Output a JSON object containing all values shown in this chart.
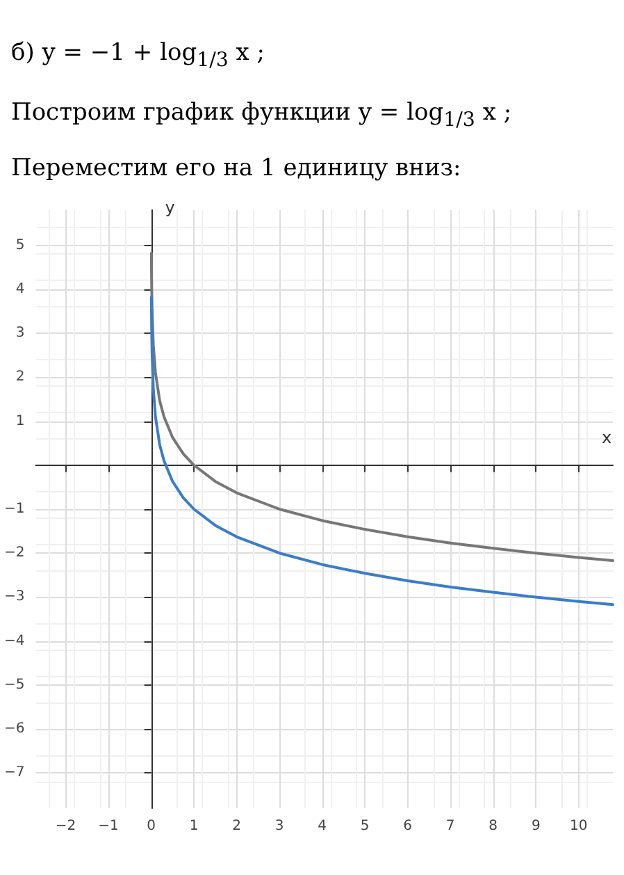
{
  "chart_data": {
    "type": "line",
    "title": "б) y = −1 + log$_{1/3}$ x ;",
    "subtitle": "Построим график функции y = log$_{1/3}$ x ;",
    "annotations": [
      "Переместим его на 1 единицу вниз:"
    ],
    "xlabel": "x",
    "ylabel": "y",
    "x": [
      0.005,
      0.01,
      0.02,
      0.05,
      0.1,
      0.2,
      0.3,
      0.5,
      0.75,
      1,
      1.5,
      2,
      3,
      4,
      5,
      6,
      7,
      8,
      9,
      10,
      10.8
    ],
    "series": [
      {
        "color": "#777777",
        "values": [
          4.82,
          4.19,
          3.56,
          2.73,
          2.1,
          1.46,
          1.1,
          0.63,
          0.26,
          0,
          -0.37,
          -0.63,
          -1,
          -1.26,
          -1.46,
          -1.63,
          -1.77,
          -1.89,
          -2,
          -2.1,
          -2.17
        ]
      },
      {
        "color": "#3a7dc9",
        "values": [
          3.82,
          3.19,
          2.56,
          1.73,
          1.1,
          0.46,
          0.1,
          -0.37,
          -0.74,
          -1,
          -1.37,
          -1.63,
          -2,
          -2.26,
          -2.46,
          -2.63,
          -2.77,
          -2.89,
          -3,
          -3.1,
          -3.17
        ]
      }
    ],
    "xlim": [
      -2.7,
      10.8
    ],
    "ylim": [
      -7.8,
      5.8
    ],
    "xticks": [
      -2,
      -1,
      0,
      1,
      2,
      3,
      4,
      5,
      6,
      7,
      8,
      9,
      10
    ],
    "yticks": [
      -7,
      -6,
      -5,
      -4,
      -3,
      -2,
      -1,
      1,
      2,
      3,
      4,
      5
    ],
    "grid": true,
    "marker": "none",
    "line_style": "solid"
  }
}
